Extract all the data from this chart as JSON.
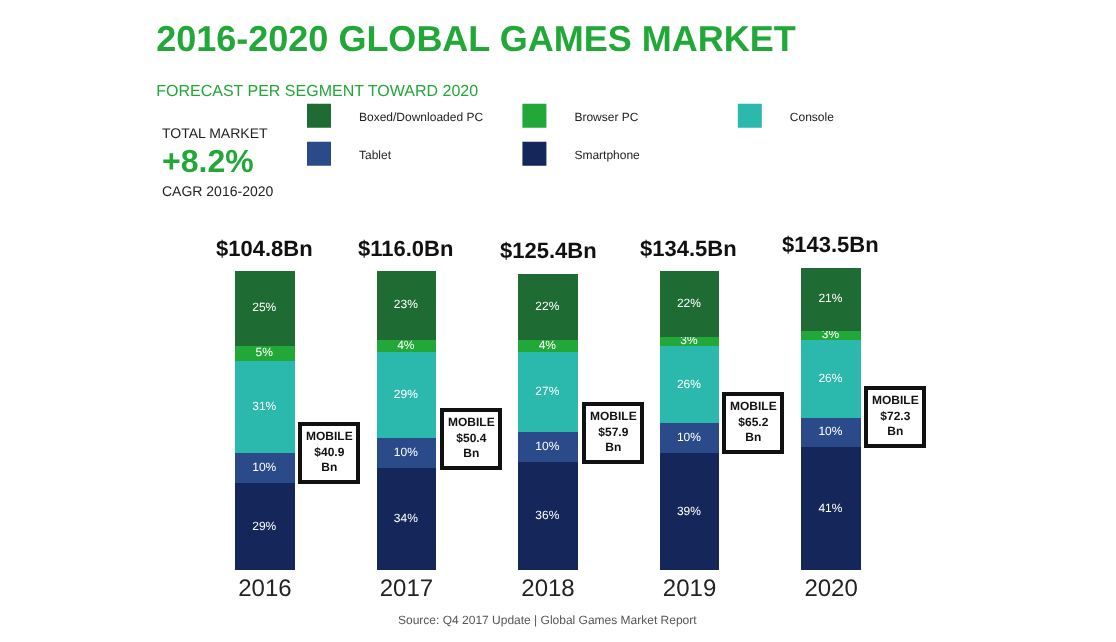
{
  "chart_data": {
    "type": "bar",
    "title": "2016-2020 GLOBAL GAMES MARKET",
    "subtitle": "FORECAST PER SEGMENT TOWARD 2020",
    "categories": [
      "2016",
      "2017",
      "2018",
      "2019",
      "2020"
    ],
    "stacked": true,
    "legend": "top",
    "grid": false,
    "tick_labels": "x",
    "series": [
      {
        "name": "Smartphone",
        "color": "#15275a",
        "values": [
          29,
          34,
          36,
          39,
          41
        ],
        "value_labels": [
          "29%",
          "34%",
          "36%",
          "39%",
          "41%"
        ]
      },
      {
        "name": "Tablet",
        "color": "#2a4a8a",
        "values": [
          10,
          10,
          10,
          10,
          10
        ],
        "value_labels": [
          "10%",
          "10%",
          "10%",
          "10%",
          "10%"
        ]
      },
      {
        "name": "Console",
        "color": "#2bb8ad",
        "values": [
          31,
          29,
          27,
          26,
          26
        ],
        "value_labels": [
          "31%",
          "29%",
          "27%",
          "26%",
          "26%"
        ]
      },
      {
        "name": "Browser PC",
        "color": "#22a838",
        "values": [
          5,
          4,
          4,
          3,
          3
        ],
        "value_labels": [
          "5%",
          "4%",
          "4%",
          "3%",
          "3%"
        ]
      },
      {
        "name": "Boxed/Downloaded PC",
        "color": "#1e6b34",
        "values": [
          25,
          23,
          22,
          22,
          21
        ],
        "value_labels": [
          "25%",
          "23%",
          "22%",
          "22%",
          "21%"
        ]
      }
    ],
    "annotations": [
      "TOTAL MARKET",
      "+8.2%",
      "CAGR 2016-2020",
      "Source: Q4 2017 Update | Global Games Market Report",
      "MOBILE\n$40.9\nBn",
      "MOBILE\n$50.4\nBn",
      "MOBILE\n$57.9\nBn",
      "MOBILE\n$65.2\nBn",
      "MOBILE\n$72.3\nBn",
      {
        "text": "$104.8Bn",
        "x": "2016",
        "y": 100
      },
      {
        "text": "$116.0Bn",
        "x": "2017",
        "y": 100
      },
      {
        "text": "$125.4Bn",
        "x": "2018",
        "y": 99
      },
      {
        "text": "$134.5Bn",
        "x": "2019",
        "y": 100
      },
      {
        "text": "$143.5Bn",
        "x": "2020",
        "y": 101
      }
    ]
  }
}
